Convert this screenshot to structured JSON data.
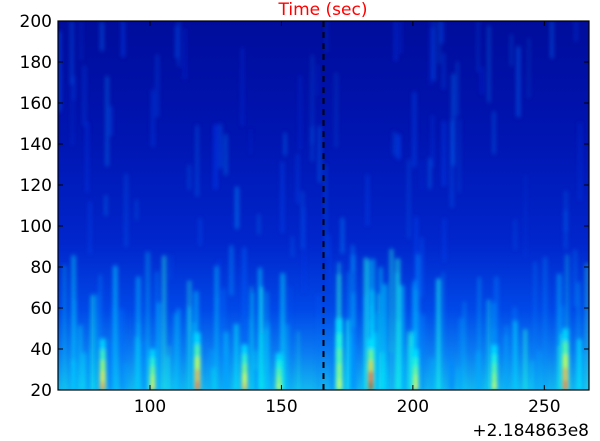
{
  "colors": {
    "title": "#ff0000",
    "ylabel": "#ff0000",
    "marker_line": "#000000",
    "axes": "#000000",
    "colormap": "jet"
  },
  "chart_data": {
    "type": "heatmap",
    "title": "Time (sec)",
    "xlabel": "",
    "ylabel": "",
    "x_offset_label": "+2.184863e8",
    "xlim": [
      65,
      267
    ],
    "ylim": [
      20,
      200
    ],
    "x_ticks": [
      100,
      150,
      200,
      250
    ],
    "y_ticks": [
      20,
      40,
      60,
      80,
      100,
      120,
      140,
      160,
      180,
      200
    ],
    "x_tick_labels": [
      "100",
      "150",
      "200",
      "250"
    ],
    "y_tick_labels": [
      "20",
      "40",
      "60",
      "80",
      "100",
      "120",
      "140",
      "160",
      "180",
      "200"
    ],
    "colormap": "jet",
    "grid": false,
    "legend": "none",
    "vertical_marker": {
      "x": 166,
      "style": "dashed",
      "color": "#000000"
    },
    "hotspots": [
      {
        "x": 82,
        "y_low": 20,
        "y_high": 45,
        "intensity": 0.75
      },
      {
        "x": 101,
        "y_low": 20,
        "y_high": 40,
        "intensity": 0.65
      },
      {
        "x": 118,
        "y_low": 20,
        "y_high": 48,
        "intensity": 0.85
      },
      {
        "x": 136,
        "y_low": 20,
        "y_high": 42,
        "intensity": 0.7
      },
      {
        "x": 149,
        "y_low": 20,
        "y_high": 38,
        "intensity": 0.6
      },
      {
        "x": 172,
        "y_low": 20,
        "y_high": 55,
        "intensity": 0.6
      },
      {
        "x": 184,
        "y_low": 20,
        "y_high": 45,
        "intensity": 1.0
      },
      {
        "x": 201,
        "y_low": 20,
        "y_high": 40,
        "intensity": 0.65
      },
      {
        "x": 231,
        "y_low": 20,
        "y_high": 42,
        "intensity": 0.6
      },
      {
        "x": 258,
        "y_low": 20,
        "y_high": 50,
        "intensity": 0.85
      }
    ]
  }
}
